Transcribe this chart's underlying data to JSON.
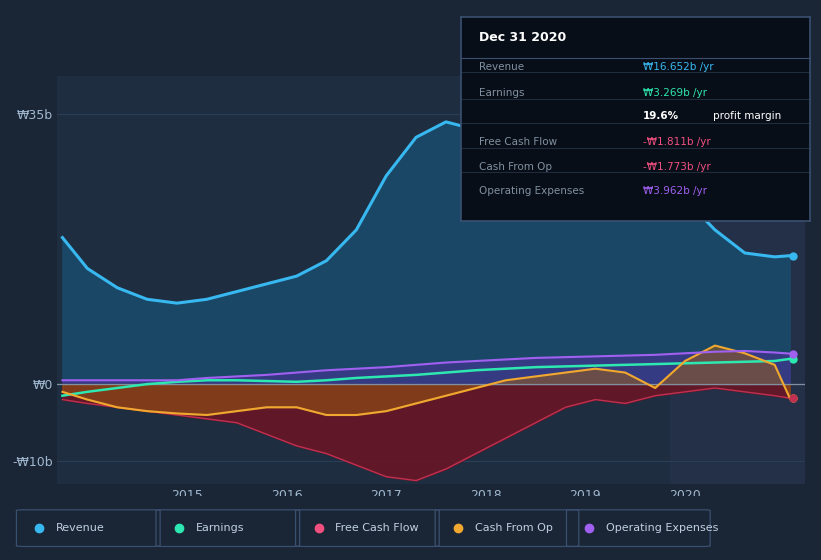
{
  "bg_color": "#1a2535",
  "plot_bg_color": "#1e2d40",
  "grid_color": "#2a3f5a",
  "highlight_bg": "#243048",
  "yticks": [
    -10,
    0,
    35
  ],
  "ytick_labels": [
    "-₩10b",
    "₩0",
    "₩35b"
  ],
  "ylim": [
    -13,
    40
  ],
  "xlim_start": 2013.7,
  "xlim_end": 2021.2,
  "xtick_years": [
    2015,
    2016,
    2017,
    2018,
    2019,
    2020
  ],
  "legend_items": [
    {
      "label": "Revenue",
      "color": "#38b8f0"
    },
    {
      "label": "Earnings",
      "color": "#2de8b0"
    },
    {
      "label": "Free Cash Flow",
      "color": "#f05080"
    },
    {
      "label": "Cash From Op",
      "color": "#f0a830"
    },
    {
      "label": "Operating Expenses",
      "color": "#a060f0"
    }
  ],
  "revenue": {
    "x": [
      2013.75,
      2014.0,
      2014.3,
      2014.6,
      2014.9,
      2015.2,
      2015.5,
      2015.8,
      2016.1,
      2016.4,
      2016.7,
      2017.0,
      2017.3,
      2017.6,
      2017.9,
      2018.2,
      2018.5,
      2018.8,
      2019.1,
      2019.4,
      2019.7,
      2020.0,
      2020.3,
      2020.6,
      2020.9,
      2021.05
    ],
    "y": [
      19,
      15,
      12.5,
      11,
      10.5,
      11,
      12,
      13,
      14,
      16,
      20,
      27,
      32,
      34,
      33,
      30,
      28,
      27,
      26,
      28,
      27,
      24,
      20,
      17,
      16.5,
      16.65
    ],
    "color": "#38b8f0",
    "fill_color": "#1a4a6a",
    "linewidth": 2.2
  },
  "earnings": {
    "x": [
      2013.75,
      2014.0,
      2014.3,
      2014.6,
      2014.9,
      2015.2,
      2015.5,
      2015.8,
      2016.1,
      2016.4,
      2016.7,
      2017.0,
      2017.3,
      2017.6,
      2017.9,
      2018.2,
      2018.5,
      2018.8,
      2019.1,
      2019.4,
      2019.7,
      2020.0,
      2020.3,
      2020.6,
      2020.9,
      2021.05
    ],
    "y": [
      -1.5,
      -1.0,
      -0.5,
      0.0,
      0.3,
      0.5,
      0.5,
      0.4,
      0.3,
      0.5,
      0.8,
      1.0,
      1.2,
      1.5,
      1.8,
      2.0,
      2.2,
      2.3,
      2.4,
      2.5,
      2.6,
      2.7,
      2.8,
      2.9,
      3.0,
      3.269
    ],
    "color": "#2de8b0",
    "linewidth": 1.8
  },
  "free_cash_flow": {
    "x": [
      2013.75,
      2014.0,
      2014.3,
      2014.6,
      2014.9,
      2015.2,
      2015.5,
      2015.8,
      2016.1,
      2016.4,
      2016.7,
      2017.0,
      2017.3,
      2017.6,
      2017.9,
      2018.2,
      2018.5,
      2018.8,
      2019.1,
      2019.4,
      2019.7,
      2020.0,
      2020.3,
      2020.6,
      2020.9,
      2021.05
    ],
    "y": [
      -2,
      -2.5,
      -3,
      -3.5,
      -4,
      -4.5,
      -5,
      -6.5,
      -8,
      -9,
      -10.5,
      -12,
      -12.5,
      -11,
      -9,
      -7,
      -5,
      -3,
      -2,
      -2.5,
      -1.5,
      -1,
      -0.5,
      -1,
      -1.5,
      -1.811
    ],
    "color": "#c03050",
    "fill_color": "#6a1525",
    "linewidth": 1.0
  },
  "cash_from_op": {
    "x": [
      2013.75,
      2014.0,
      2014.3,
      2014.6,
      2014.9,
      2015.2,
      2015.5,
      2015.8,
      2016.1,
      2016.4,
      2016.7,
      2017.0,
      2017.3,
      2017.6,
      2017.9,
      2018.2,
      2018.5,
      2018.8,
      2019.1,
      2019.4,
      2019.7,
      2020.0,
      2020.3,
      2020.6,
      2020.9,
      2021.05
    ],
    "y": [
      -1,
      -2,
      -3,
      -3.5,
      -3.8,
      -4,
      -3.5,
      -3,
      -3,
      -4,
      -4,
      -3.5,
      -2.5,
      -1.5,
      -0.5,
      0.5,
      1,
      1.5,
      2,
      1.5,
      -0.5,
      3,
      5,
      4,
      2.5,
      -1.773
    ],
    "color": "#f0a830",
    "fill_color": "#a06010",
    "linewidth": 1.5
  },
  "operating_expenses": {
    "x": [
      2013.75,
      2014.0,
      2014.3,
      2014.6,
      2014.9,
      2015.2,
      2015.5,
      2015.8,
      2016.1,
      2016.4,
      2016.7,
      2017.0,
      2017.3,
      2017.6,
      2017.9,
      2018.2,
      2018.5,
      2018.8,
      2019.1,
      2019.4,
      2019.7,
      2020.0,
      2020.3,
      2020.6,
      2020.9,
      2021.05
    ],
    "y": [
      0.5,
      0.5,
      0.5,
      0.5,
      0.5,
      0.8,
      1.0,
      1.2,
      1.5,
      1.8,
      2.0,
      2.2,
      2.5,
      2.8,
      3.0,
      3.2,
      3.4,
      3.5,
      3.6,
      3.7,
      3.8,
      4.0,
      4.2,
      4.3,
      4.1,
      3.962
    ],
    "color": "#a060f0",
    "fill_color": "#5030a0",
    "linewidth": 1.5
  },
  "highlight_x_start": 2019.85,
  "highlight_x_end": 2021.2
}
